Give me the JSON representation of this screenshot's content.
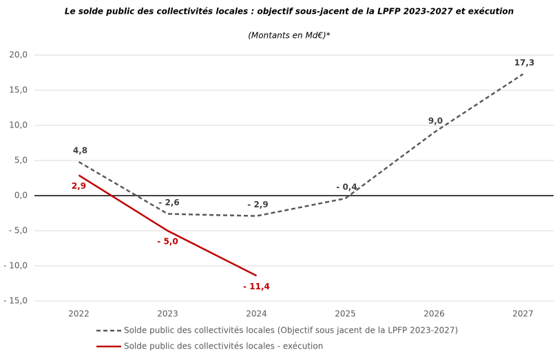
{
  "chart_data": {
    "type": "line",
    "title": "Le solde public des collectivités locales : objectif sous-jacent de la LPFP 2023-2027 et exécution",
    "subtitle": "(Montants en Md€)*",
    "categories": [
      "2022",
      "2023",
      "2024",
      "2025",
      "2026",
      "2027"
    ],
    "series": [
      {
        "name": "Solde public des collectivités locales (Objectif sous jacent de la LPFP 2023-2027)",
        "color": "#595959",
        "dashed": true,
        "values": [
          4.8,
          -2.6,
          -2.9,
          -0.4,
          9.0,
          17.3
        ],
        "value_labels": [
          "4,8",
          "- 2,6",
          "- 2,9",
          "- 0,4",
          "9,0",
          "17,3"
        ]
      },
      {
        "name": "Solde public des collectivités locales - exécution",
        "color": "#c00000",
        "dashed": false,
        "values": [
          2.9,
          -5.0,
          -11.4,
          null,
          null,
          null
        ],
        "value_labels": [
          "2,9",
          "- 5,0",
          "- 11,4",
          null,
          null,
          null
        ]
      }
    ],
    "ylim": [
      -15,
      20
    ],
    "yticks": [
      {
        "value": -15,
        "label": "- 15,0"
      },
      {
        "value": -10,
        "label": "- 10,0"
      },
      {
        "value": -5,
        "label": "- 5,0"
      },
      {
        "value": 0,
        "label": "0,0"
      },
      {
        "value": 5,
        "label": "5,0"
      },
      {
        "value": 10,
        "label": "10,0"
      },
      {
        "value": 15,
        "label": "15,0"
      },
      {
        "value": 20,
        "label": "20,0"
      }
    ],
    "grid": true,
    "legend": "bottom"
  }
}
